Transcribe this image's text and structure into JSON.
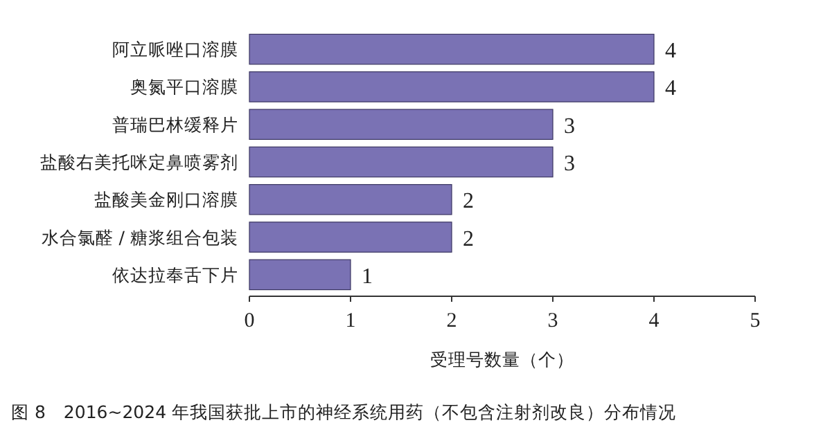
{
  "chart_data": {
    "type": "bar",
    "orientation": "horizontal",
    "categories": [
      "阿立哌唑口溶膜",
      "奥氮平口溶膜",
      "普瑞巴林缓释片",
      "盐酸右美托咪定鼻喷雾剂",
      "盐酸美金刚口溶膜",
      "水合氯醛 / 糖浆组合包装",
      "依达拉奉舌下片"
    ],
    "values": [
      4,
      4,
      3,
      3,
      2,
      2,
      1
    ],
    "color": "#7a72b4",
    "xlim": [
      0,
      5
    ],
    "xticks": [
      0,
      1,
      2,
      3,
      4,
      5
    ],
    "xlabel": "受理号数量（个）",
    "data_labels": true,
    "annotations": [
      "图 8　2016~2024 年我国获批上市的神经系统用药（不包含注射剂改良）分布情况"
    ]
  }
}
